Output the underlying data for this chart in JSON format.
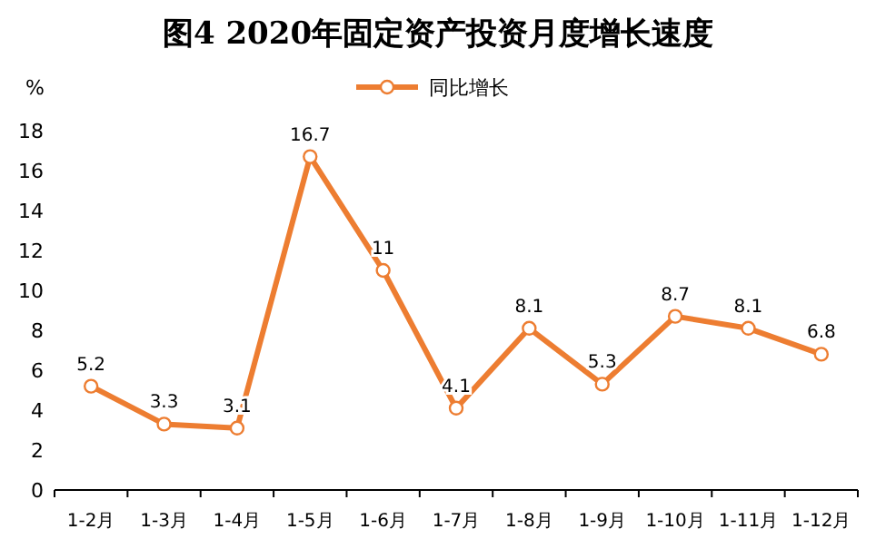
{
  "chart_data": {
    "type": "line",
    "title": "图4  2020年固定资产投资月度增长速度",
    "ylabel": "%",
    "categories": [
      "1-2月",
      "1-3月",
      "1-4月",
      "1-5月",
      "1-6月",
      "1-7月",
      "1-8月",
      "1-9月",
      "1-10月",
      "1-11月",
      "1-12月"
    ],
    "series": [
      {
        "name": "同比增长",
        "color": "#ed7d31",
        "values": [
          5.2,
          3.3,
          3.1,
          16.7,
          11,
          4.1,
          8.1,
          5.3,
          8.7,
          8.1,
          6.8
        ]
      }
    ],
    "ylim": [
      0,
      18
    ],
    "yticks": [
      0,
      2,
      4,
      6,
      8,
      10,
      12,
      14,
      16,
      18
    ],
    "data_labels": true,
    "legend": "top",
    "marker": "circle",
    "line_style": "solid"
  }
}
